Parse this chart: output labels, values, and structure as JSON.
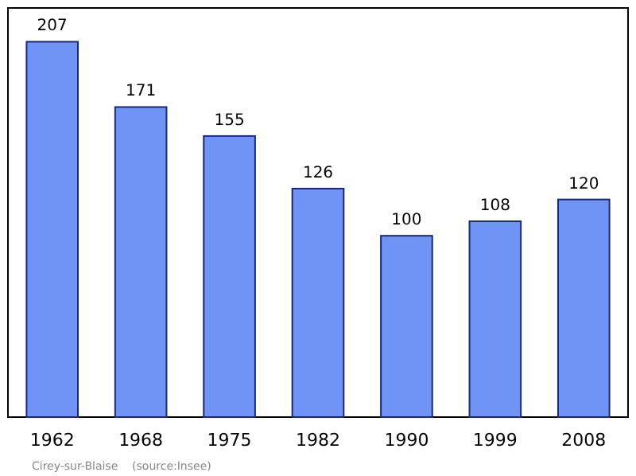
{
  "chart_data": {
    "type": "bar",
    "categories": [
      "1962",
      "1968",
      "1975",
      "1982",
      "1990",
      "1999",
      "2008"
    ],
    "values": [
      207,
      171,
      155,
      126,
      100,
      108,
      120
    ],
    "color": "#7094f5",
    "data_labels": true,
    "annotations": [
      "Cirey-sur-Blaise    (source:Insee)"
    ]
  }
}
